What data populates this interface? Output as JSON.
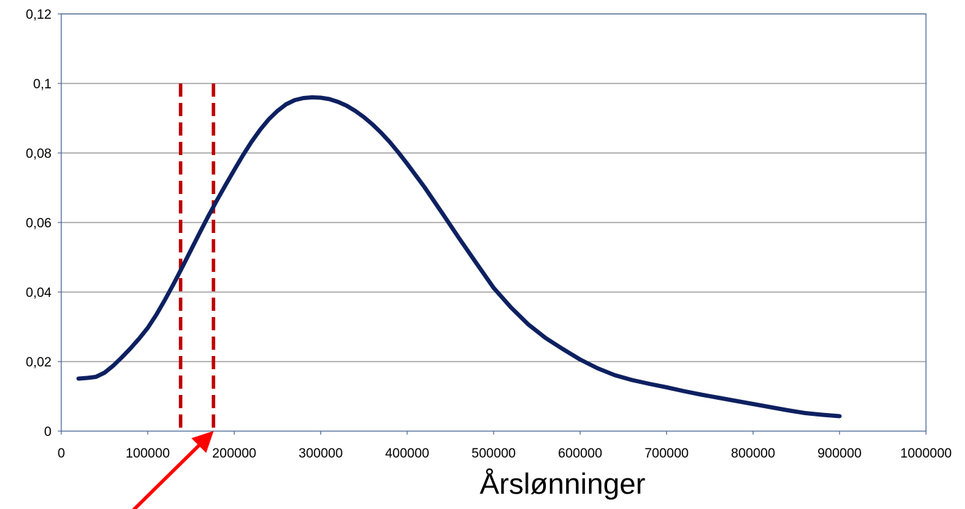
{
  "chart_data": {
    "type": "line",
    "title": "",
    "xlabel": "Årslønninger",
    "ylabel": "",
    "xlim": [
      0,
      1000000
    ],
    "ylim": [
      0,
      0.12
    ],
    "grid": true,
    "legend": "none",
    "x_ticks": [
      0,
      100000,
      200000,
      300000,
      400000,
      500000,
      600000,
      700000,
      800000,
      900000,
      1000000
    ],
    "x_tick_labels": [
      "0",
      "100000",
      "200000",
      "300000",
      "400000",
      "500000",
      "600000",
      "700000",
      "800000",
      "900000",
      "1000000"
    ],
    "y_ticks": [
      0,
      0.02,
      0.04,
      0.06,
      0.08,
      0.1,
      0.12
    ],
    "y_tick_labels": [
      "0",
      "0,02",
      "0,04",
      "0,06",
      "0,08",
      "0,1",
      "0,12"
    ],
    "series": [
      {
        "color": "#0d2060",
        "x": [
          20000,
          30000,
          40000,
          50000,
          60000,
          70000,
          80000,
          90000,
          100000,
          110000,
          120000,
          130000,
          140000,
          150000,
          160000,
          170000,
          180000,
          190000,
          200000,
          210000,
          220000,
          230000,
          240000,
          250000,
          260000,
          270000,
          280000,
          290000,
          300000,
          310000,
          320000,
          330000,
          340000,
          350000,
          360000,
          370000,
          380000,
          390000,
          400000,
          420000,
          440000,
          460000,
          480000,
          500000,
          520000,
          540000,
          560000,
          580000,
          600000,
          620000,
          640000,
          660000,
          680000,
          700000,
          720000,
          740000,
          760000,
          780000,
          800000,
          820000,
          840000,
          860000,
          880000,
          900000
        ],
        "y": [
          0.0151,
          0.0153,
          0.0156,
          0.0168,
          0.0188,
          0.0212,
          0.0238,
          0.0266,
          0.0297,
          0.0335,
          0.0378,
          0.0424,
          0.0472,
          0.0521,
          0.057,
          0.0618,
          0.0664,
          0.0708,
          0.0751,
          0.0793,
          0.0832,
          0.0867,
          0.0897,
          0.0921,
          0.094,
          0.0952,
          0.0958,
          0.096,
          0.0959,
          0.0955,
          0.0947,
          0.0936,
          0.0921,
          0.0903,
          0.0882,
          0.0858,
          0.0831,
          0.0801,
          0.0769,
          0.0702,
          0.0629,
          0.0555,
          0.0483,
          0.0412,
          0.0356,
          0.0307,
          0.0268,
          0.0236,
          0.0206,
          0.0181,
          0.0161,
          0.0147,
          0.0136,
          0.0126,
          0.0115,
          0.0105,
          0.0096,
          0.0087,
          0.0078,
          0.0069,
          0.006,
          0.0052,
          0.0047,
          0.0043
        ]
      }
    ],
    "vertical_markers": [
      {
        "x": 138000,
        "color": "#c00000",
        "style": "dashed"
      },
      {
        "x": 176000,
        "color": "#c00000",
        "style": "dashed"
      }
    ],
    "annotation_arrow": {
      "color": "#ff0000",
      "points_to_x": 176000
    }
  }
}
